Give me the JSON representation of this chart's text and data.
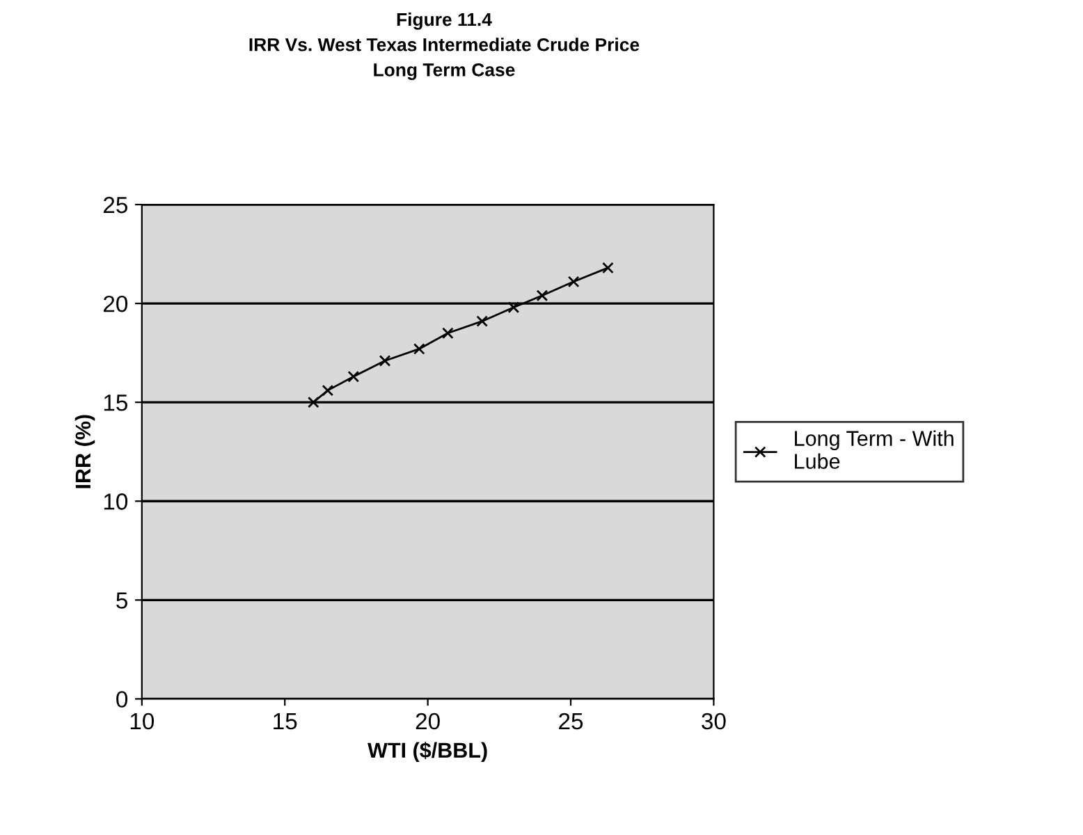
{
  "chart_data": {
    "type": "line",
    "title": "Figure 11.4\nIRR Vs. West Texas Intermediate Crude Price\nLong Term Case",
    "xlabel": "WTI ($/BBL)",
    "ylabel": "IRR (%)",
    "x": [
      16,
      16.5,
      17.4,
      18.5,
      19.7,
      20.7,
      21.9,
      23.0,
      24.0,
      25.1,
      26.3
    ],
    "series": [
      {
        "name": "Long Term - With\nLube",
        "color": "#000000",
        "values": [
          15.0,
          15.6,
          16.3,
          17.1,
          17.7,
          18.5,
          19.1,
          19.8,
          20.4,
          21.1,
          21.8
        ]
      }
    ],
    "xlim": [
      10,
      30
    ],
    "xticks": [
      10,
      15,
      20,
      25,
      30
    ],
    "ylim": [
      0,
      25
    ],
    "yticks": [
      0,
      5,
      10,
      15,
      20,
      25
    ],
    "grid": "y",
    "legend": "right",
    "marker": "cross",
    "line_style": "solid"
  }
}
